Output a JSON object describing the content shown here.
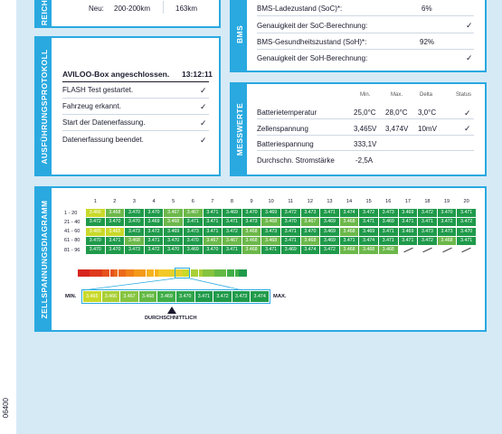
{
  "doc_code": "06400",
  "top_left": {
    "tab": "REICH",
    "row": {
      "label": "Neu:",
      "range": "200-200km",
      "value": "163km"
    }
  },
  "bms": {
    "tab": "BMS",
    "rows": [
      {
        "label": "BMS-Ladezustand (SoC)*:",
        "value": "6%",
        "check": ""
      },
      {
        "label": "Genauigkeit der SoC-Berechnung:",
        "value": "",
        "check": "✓"
      },
      {
        "label": "BMS-Gesundheitszustand (SoH)*:",
        "value": "92%",
        "check": ""
      },
      {
        "label": "Genauigkeit der SoH-Berechnung:",
        "value": "",
        "check": "✓"
      }
    ]
  },
  "protocol": {
    "tab": "AUSFÜHRUNGSPROTOKOLL",
    "header": "AVILOO-Box angeschlossen.",
    "time": "13:12:11",
    "items": [
      {
        "label": "FLASH Test gestartet.",
        "check": "✓"
      },
      {
        "label": "Fahrzeug erkannt.",
        "check": "✓"
      },
      {
        "label": "Start der Datenerfassung.",
        "check": "✓"
      },
      {
        "label": "Datenerfassung beendet.",
        "check": "✓"
      }
    ]
  },
  "measurements": {
    "tab": "MESSWERTE",
    "headers": [
      "Min.",
      "Max.",
      "Delta",
      "Status"
    ],
    "rows": [
      {
        "label": "Batterietemperatur",
        "min": "25,0°C",
        "max": "28,0°C",
        "delta": "3,0°C",
        "status": "✓"
      },
      {
        "label": "Zellenspannung",
        "min": "3,465V",
        "max": "3,474V",
        "delta": "10mV",
        "status": "✓"
      },
      {
        "label": "Batteriespannung",
        "min": "333,1V",
        "max": "",
        "delta": "",
        "status": ""
      },
      {
        "label": "Durchschn. Stromstärke",
        "min": "-2,5A",
        "max": "",
        "delta": "",
        "status": ""
      }
    ]
  },
  "cell_diagram": {
    "tab": "ZELLSPANNUNGSDIAGRAMM",
    "col_headers": [
      "1",
      "2",
      "3",
      "4",
      "5",
      "6",
      "7",
      "8",
      "9",
      "10",
      "11",
      "12",
      "13",
      "14",
      "15",
      "16",
      "17",
      "18",
      "19",
      "20"
    ],
    "row_labels": [
      "1 - 20",
      "21 - 40",
      "41 - 60",
      "61 - 80",
      "81 - 96"
    ],
    "rows": [
      [
        "3.466",
        "3.468",
        "3.470",
        "3.470",
        "3.467",
        "3.467",
        "3.471",
        "3.469",
        "3.470",
        "3.469",
        "3.472",
        "3.473",
        "3.471",
        "3.474",
        "3.472",
        "3.473",
        "3.469",
        "3.472",
        "3.470",
        "3.471"
      ],
      [
        "3.472",
        "3.470",
        "3.470",
        "3.469",
        "3.468",
        "3.471",
        "3.471",
        "3.471",
        "3.473",
        "3.468",
        "3.470",
        "3.467",
        "3.469",
        "3.468",
        "3.471",
        "3.469",
        "3.471",
        "3.471",
        "3.472",
        "3.472"
      ],
      [
        "3.465",
        "3.465",
        "3.473",
        "3.472",
        "3.469",
        "3.473",
        "3.471",
        "3.472",
        "3.468",
        "3.473",
        "3.471",
        "3.470",
        "3.469",
        "3.468",
        "3.469",
        "3.471",
        "3.469",
        "3.473",
        "3.473",
        "3.470"
      ],
      [
        "3.470",
        "3.471",
        "3.468",
        "3.471",
        "3.470",
        "3.470",
        "3.467",
        "3.467",
        "3.468",
        "3.468",
        "3.471",
        "3.468",
        "3.469",
        "3.471",
        "3.474",
        "3.471",
        "3.471",
        "3.472",
        "3.468",
        "3.471"
      ],
      [
        "3.470",
        "3.470",
        "3.473",
        "3.472",
        "3.470",
        "3.469",
        "3.470",
        "3.471",
        "3.468",
        "3.471",
        "3.469",
        "3.474",
        "3.472",
        "3.468",
        "3.468",
        "3.468",
        "",
        "",
        "",
        ""
      ]
    ],
    "colors": {
      "high": "#1f9a4a",
      "mid": "#6cb84a",
      "low": "#c9d92a",
      "accent": "#29a9e0"
    },
    "scale": {
      "min_label": "MIN.",
      "max_label": "MAX.",
      "values": [
        "3.465",
        "3.466",
        "3.467",
        "3.468",
        "3.469",
        "3.470",
        "3.471",
        "3.472",
        "3.473",
        "3.474"
      ],
      "avg_label": "DURCHSCHNITTLICH"
    }
  }
}
